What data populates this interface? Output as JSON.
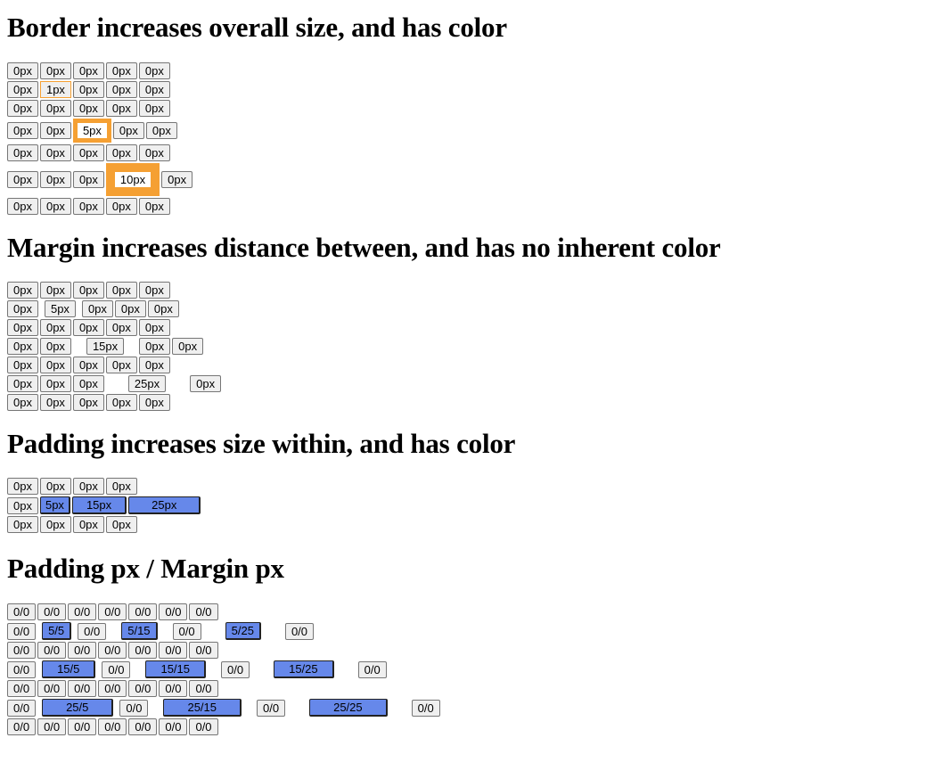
{
  "sections": [
    {
      "id": "border",
      "title": "Border increases overall size, and has color",
      "gap_before": 18,
      "rows": [
        [
          "0px",
          "0px",
          "0px",
          "0px",
          "0px"
        ],
        [
          "0px",
          "1px",
          "0px",
          "0px",
          "0px"
        ],
        [
          "0px",
          "0px",
          "0px",
          "0px",
          "0px"
        ],
        [
          "0px",
          "0px",
          "5px",
          "0px",
          "0px"
        ],
        [
          "0px",
          "0px",
          "0px",
          "0px",
          "0px"
        ],
        [
          "0px",
          "0px",
          "0px",
          "10px",
          "0px"
        ],
        [
          "0px",
          "0px",
          "0px",
          "0px",
          "0px"
        ]
      ]
    },
    {
      "id": "margin",
      "title": "Margin increases distance between, and has no inherent color",
      "rows": [
        [
          "0px",
          "0px",
          "0px",
          "0px",
          "0px"
        ],
        [
          "0px",
          "5px",
          "0px",
          "0px",
          "0px"
        ],
        [
          "0px",
          "0px",
          "0px",
          "0px",
          "0px"
        ],
        [
          "0px",
          "0px",
          "15px",
          "0px",
          "0px"
        ],
        [
          "0px",
          "0px",
          "0px",
          "0px",
          "0px"
        ],
        [
          "0px",
          "0px",
          "0px",
          "25px",
          "0px"
        ],
        [
          "0px",
          "0px",
          "0px",
          "0px",
          "0px"
        ]
      ]
    },
    {
      "id": "padding",
      "title": "Padding increases size within, and has color",
      "rows": [
        [
          "0px",
          "0px",
          "0px",
          "0px"
        ],
        [
          "0px",
          "5px",
          "15px",
          "25px"
        ],
        [
          "0px",
          "0px",
          "0px",
          "0px"
        ]
      ]
    },
    {
      "id": "padmargin",
      "title": "Padding px / Margin px",
      "rows": [
        [
          "0/0",
          "0/0",
          "0/0",
          "0/0",
          "0/0",
          "0/0",
          "0/0"
        ],
        [
          "0/0",
          "5/5",
          "0/0",
          "5/15",
          "0/0",
          "5/25",
          "0/0"
        ],
        [
          "0/0",
          "0/0",
          "0/0",
          "0/0",
          "0/0",
          "0/0",
          "0/0"
        ],
        [
          "0/0",
          "15/5",
          "0/0",
          "15/15",
          "0/0",
          "15/25",
          "0/0"
        ],
        [
          "0/0",
          "0/0",
          "0/0",
          "0/0",
          "0/0",
          "0/0",
          "0/0"
        ],
        [
          "0/0",
          "25/5",
          "0/0",
          "25/15",
          "0/0",
          "25/25",
          "0/0"
        ],
        [
          "0/0",
          "0/0",
          "0/0",
          "0/0",
          "0/0",
          "0/0",
          "0/0"
        ]
      ]
    }
  ],
  "colors": {
    "border_accent": "#f5a033",
    "padding_fill": "#6688ea",
    "button_bg": "#efefef"
  }
}
